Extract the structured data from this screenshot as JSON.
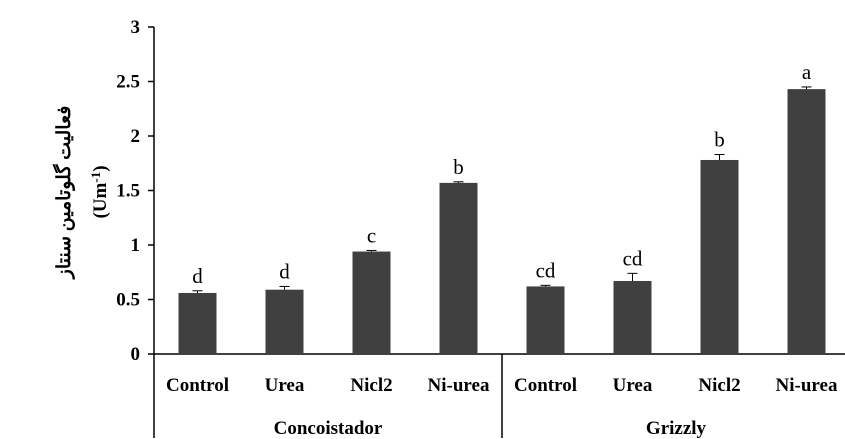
{
  "chart_data": {
    "type": "bar",
    "ylabel": "فعالیت گلوتامین سنتاز",
    "ylabel_unit": "(Um",
    "ylabel_unit_sup": "-1",
    "ylabel_unit_close": ")",
    "ylim": [
      0,
      3
    ],
    "yticks": [
      "0",
      "0.5",
      "1",
      "1.5",
      "2",
      "2.5",
      "3"
    ],
    "ytick_values": [
      0,
      0.5,
      1,
      1.5,
      2,
      2.5,
      3
    ],
    "groups": [
      {
        "name": "Concoistador",
        "bars": [
          {
            "category": "Control",
            "value": 0.56,
            "error": 0.02,
            "letter": "d"
          },
          {
            "category": "Urea",
            "value": 0.59,
            "error": 0.03,
            "letter": "d"
          },
          {
            "category": "Nicl2",
            "value": 0.94,
            "error": 0.01,
            "letter": "c"
          },
          {
            "category": "Ni-urea",
            "value": 1.57,
            "error": 0.01,
            "letter": "b"
          }
        ]
      },
      {
        "name": "Grizzly",
        "bars": [
          {
            "category": "Control",
            "value": 0.62,
            "error": 0.01,
            "letter": "cd"
          },
          {
            "category": "Urea",
            "value": 0.67,
            "error": 0.07,
            "letter": "cd"
          },
          {
            "category": "Nicl2",
            "value": 1.78,
            "error": 0.05,
            "letter": "b"
          },
          {
            "category": "Ni-urea",
            "value": 2.43,
            "error": 0.02,
            "letter": "a"
          }
        ]
      }
    ],
    "grid": false,
    "legend": "none",
    "bar_color": "#404040"
  }
}
